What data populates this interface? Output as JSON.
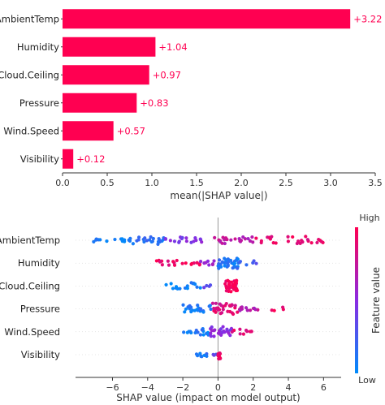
{
  "chart_data": [
    {
      "type": "bar",
      "orientation": "horizontal",
      "categories": [
        "AmbientTemp",
        "Humidity",
        "Cloud.Ceiling",
        "Pressure",
        "Wind.Speed",
        "Visibility"
      ],
      "values": [
        3.22,
        1.04,
        0.97,
        0.83,
        0.57,
        0.12
      ],
      "value_labels": [
        "+3.22",
        "+1.04",
        "+0.97",
        "+0.83",
        "+0.57",
        "+0.12"
      ],
      "xlabel": "mean(|SHAP value|)",
      "xlim": [
        0,
        3.5
      ],
      "xticks": [
        0.0,
        0.5,
        1.0,
        1.5,
        2.0,
        2.5,
        3.0,
        3.5
      ],
      "xtick_labels": [
        "0.0",
        "0.5",
        "1.0",
        "1.5",
        "2.0",
        "2.5",
        "3.0",
        "3.5"
      ],
      "bar_color": "#ff0051",
      "label_color": "#ff0051"
    },
    {
      "type": "scatter",
      "subtype": "beeswarm",
      "categories": [
        "AmbientTemp",
        "Humidity",
        "Cloud.Ceiling",
        "Pressure",
        "Wind.Speed",
        "Visibility"
      ],
      "xlabel": "SHAP value (impact on model output)",
      "xlim": [
        -8.1,
        7.0
      ],
      "xticks": [
        -6,
        -4,
        -2,
        0,
        2,
        4,
        6
      ],
      "xtick_labels": [
        "−6",
        "−4",
        "−2",
        "0",
        "2",
        "4",
        "6"
      ],
      "colorbar": {
        "label": "Feature value",
        "high": "High",
        "low": "Low",
        "low_color": "#008bfb",
        "mid_color": "#8a2be2",
        "high_color": "#ff0051"
      },
      "series": [
        {
          "name": "AmbientTemp",
          "clusters": [
            {
              "xmin": -7.5,
              "xmax": -5.0,
              "n": 14,
              "spread": 0.35,
              "color": 0.05
            },
            {
              "xmin": -5.0,
              "xmax": -3.0,
              "n": 22,
              "spread": 0.7,
              "color": 0.15
            },
            {
              "xmin": -3.0,
              "xmax": -0.5,
              "n": 18,
              "spread": 0.55,
              "color": 0.45
            },
            {
              "xmin": -0.5,
              "xmax": 2.0,
              "n": 22,
              "spread": 0.6,
              "color": 0.7
            },
            {
              "xmin": 2.0,
              "xmax": 6.0,
              "n": 28,
              "spread": 0.7,
              "color": 0.9
            }
          ]
        },
        {
          "name": "Humidity",
          "clusters": [
            {
              "xmin": -3.5,
              "xmax": -1.0,
              "n": 20,
              "spread": 0.5,
              "color": 0.92
            },
            {
              "xmin": -1.0,
              "xmax": 0.0,
              "n": 8,
              "spread": 0.4,
              "color": 0.6
            },
            {
              "xmin": 0.0,
              "xmax": 1.2,
              "n": 34,
              "spread": 1.0,
              "color": 0.12
            },
            {
              "xmin": 1.2,
              "xmax": 2.2,
              "n": 6,
              "spread": 0.4,
              "color": 0.25
            }
          ]
        },
        {
          "name": "Cloud.Ceiling",
          "clusters": [
            {
              "xmin": -3.0,
              "xmax": -1.0,
              "n": 16,
              "spread": 0.6,
              "color": 0.05
            },
            {
              "xmin": -1.0,
              "xmax": -0.2,
              "n": 4,
              "spread": 0.3,
              "color": 0.35
            },
            {
              "xmin": 0.4,
              "xmax": 1.1,
              "n": 40,
              "spread": 1.0,
              "color": 0.95
            }
          ]
        },
        {
          "name": "Pressure",
          "clusters": [
            {
              "xmin": -2.0,
              "xmax": -0.3,
              "n": 22,
              "spread": 0.7,
              "color": 0.12
            },
            {
              "xmin": -0.3,
              "xmax": 1.2,
              "n": 30,
              "spread": 1.0,
              "color": 0.85
            },
            {
              "xmin": 1.2,
              "xmax": 2.6,
              "n": 12,
              "spread": 0.5,
              "color": 0.7
            },
            {
              "xmin": 3.0,
              "xmax": 3.8,
              "n": 4,
              "spread": 0.3,
              "color": 0.95
            }
          ]
        },
        {
          "name": "Wind.Speed",
          "clusters": [
            {
              "xmin": -2.2,
              "xmax": -0.5,
              "n": 16,
              "spread": 0.6,
              "color": 0.08
            },
            {
              "xmin": -0.5,
              "xmax": 0.8,
              "n": 26,
              "spread": 0.9,
              "color": 0.5
            },
            {
              "xmin": 0.8,
              "xmax": 2.0,
              "n": 10,
              "spread": 0.5,
              "color": 0.9
            }
          ]
        },
        {
          "name": "Visibility",
          "clusters": [
            {
              "xmin": -1.4,
              "xmax": -0.6,
              "n": 10,
              "spread": 0.35,
              "color": 0.1
            },
            {
              "xmin": -0.3,
              "xmax": -0.05,
              "n": 3,
              "spread": 0.2,
              "color": 0.3
            },
            {
              "xmin": 0.0,
              "xmax": 0.15,
              "n": 14,
              "spread": 0.8,
              "color": 0.97
            }
          ]
        }
      ]
    }
  ]
}
